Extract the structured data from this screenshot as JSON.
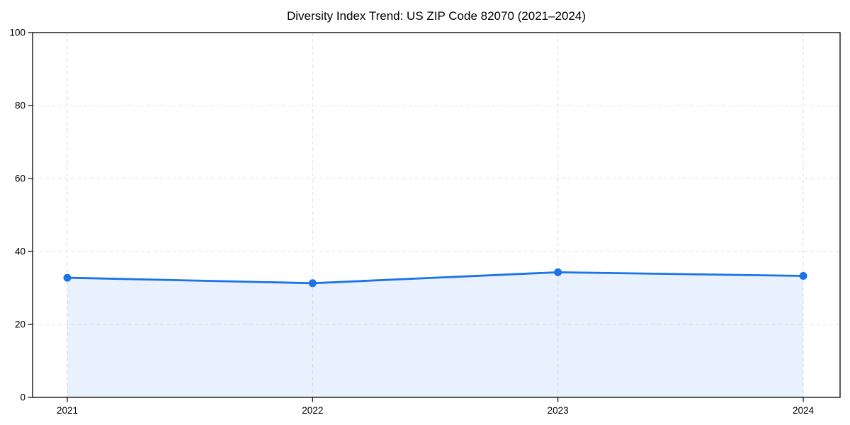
{
  "page": {
    "background": "#ffffff"
  },
  "chart_data": {
    "type": "line",
    "title": "Diversity Index Trend: US ZIP Code 82070 (2021–2024)",
    "categories": [
      "2021",
      "2022",
      "2023",
      "2024"
    ],
    "series": [
      {
        "name": "Diversity Index",
        "values": [
          32.8,
          31.3,
          34.3,
          33.3
        ]
      }
    ],
    "xlabel": "",
    "ylabel": "",
    "ylim": [
      0,
      100
    ],
    "yticks": [
      0,
      20,
      40,
      60,
      80,
      100
    ],
    "grid": "dashed",
    "legend": "none",
    "area_fill": true,
    "marker": "circle",
    "colors": {
      "line": "#1a73e8",
      "marker": "#1a73e8",
      "area_fill": "rgba(26,115,232,0.10)",
      "gridline": "#e2e2e2",
      "axis": "#000000",
      "tick_text": "#000000",
      "title_text": "#000000",
      "background": "#ffffff"
    }
  }
}
